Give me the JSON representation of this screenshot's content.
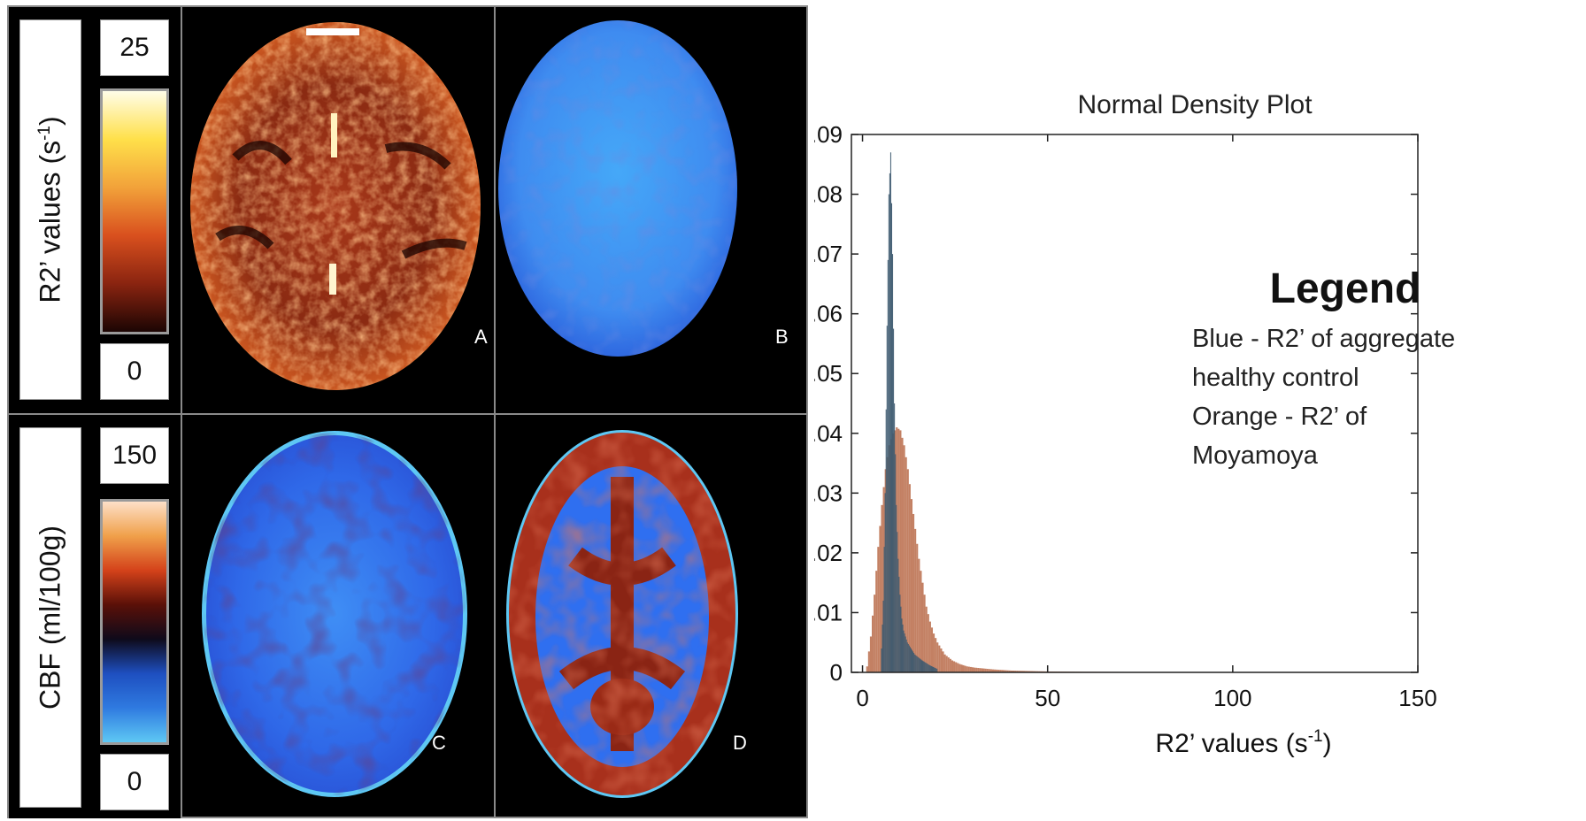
{
  "panels": {
    "r2_scale": {
      "label": "R2’ values (s",
      "label_sup": "-1",
      "label_close": ")",
      "max": "25",
      "min": "0"
    },
    "cbf_scale": {
      "label": "CBF (ml/100g)",
      "max": "150",
      "min": "0"
    },
    "letters": {
      "a": "A",
      "b": "B",
      "c": "C",
      "d": "D"
    },
    "colors": {
      "r2_gradient": [
        "#fffde8",
        "#ffe04a",
        "#f2a23a",
        "#d9501e",
        "#8a2410",
        "#1c0503"
      ],
      "cbf_gradient": [
        "#fde0c8",
        "#f0a04a",
        "#d4421a",
        "#5a1008",
        "#0e0a1a",
        "#1e4fc0",
        "#2f7ae0",
        "#5ec8f4"
      ],
      "brain_blue": "#2f6ff0",
      "brain_red": "#b8301a"
    }
  },
  "chart_data": {
    "type": "bar",
    "title": "Normal Density Plot",
    "xlabel": "R2’ values (s",
    "xlabel_sup": "-1",
    "xlabel_close": ")",
    "ylabel": "",
    "xlim": [
      -3,
      150
    ],
    "ylim": [
      0,
      0.09
    ],
    "xticks": [
      0,
      50,
      100,
      150
    ],
    "xtick_labels": [
      "0",
      "50",
      "100",
      "150"
    ],
    "yticks": [
      0,
      0.01,
      0.02,
      0.03,
      0.04,
      0.05,
      0.06,
      0.07,
      0.08,
      0.09
    ],
    "ytick_labels": [
      "0",
      ".01",
      ".02",
      ".03",
      ".04",
      ".05",
      ".06",
      ".07",
      ".08",
      ".09"
    ],
    "series": [
      {
        "name": "Blue - R2’ of aggregate healthy control",
        "color": "#3d5a70",
        "x": [
          5.0,
          5.5,
          6.0,
          6.5,
          7.0,
          7.5,
          8.0,
          8.5,
          9.0,
          9.5,
          10.0,
          10.5,
          11.0,
          11.5,
          12.0,
          13.0,
          14.0,
          15.0,
          16.0,
          18.0,
          20.0
        ],
        "values": [
          0.004,
          0.012,
          0.03,
          0.058,
          0.08,
          0.087,
          0.07,
          0.045,
          0.028,
          0.019,
          0.013,
          0.009,
          0.007,
          0.006,
          0.005,
          0.004,
          0.003,
          0.0025,
          0.002,
          0.0012,
          0.0006
        ]
      },
      {
        "name": "Orange - R2’ of Moyamoya",
        "color": "#b86a48",
        "x": [
          1,
          2,
          3,
          4,
          5,
          6,
          7,
          8,
          9,
          10,
          11,
          12,
          13,
          14,
          15,
          16,
          17,
          18,
          19,
          20,
          22,
          24,
          26,
          28,
          30,
          35,
          40,
          50,
          60,
          80,
          100,
          120,
          140,
          143
        ],
        "values": [
          0.001,
          0.006,
          0.013,
          0.021,
          0.028,
          0.034,
          0.038,
          0.04,
          0.041,
          0.0405,
          0.038,
          0.034,
          0.029,
          0.024,
          0.019,
          0.015,
          0.011,
          0.0085,
          0.0065,
          0.005,
          0.003,
          0.002,
          0.0014,
          0.001,
          0.0008,
          0.0005,
          0.0003,
          0.00015,
          0.0001,
          5e-05,
          3e-05,
          2e-05,
          1e-05,
          1e-05
        ]
      }
    ],
    "legend": {
      "title": "Legend",
      "lines": [
        "Blue - R2’ of aggregate",
        "healthy control",
        "Orange - R2’ of",
        "Moyamoya"
      ]
    }
  }
}
